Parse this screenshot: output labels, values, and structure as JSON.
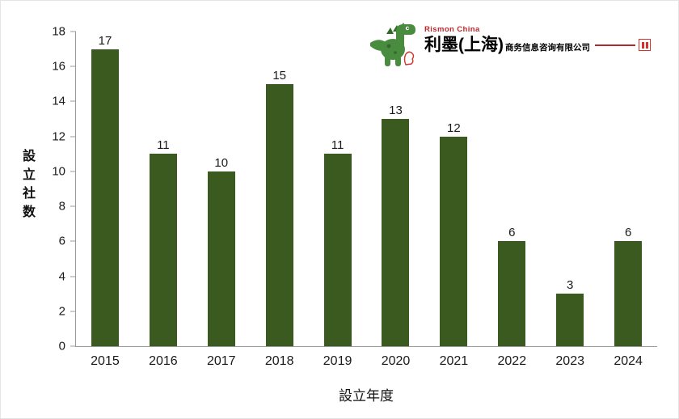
{
  "chart_data": {
    "type": "bar",
    "title": "",
    "categories": [
      "2015",
      "2016",
      "2017",
      "2018",
      "2019",
      "2020",
      "2021",
      "2022",
      "2023",
      "2024"
    ],
    "values": [
      17,
      11,
      10,
      15,
      11,
      13,
      12,
      6,
      3,
      6
    ],
    "xlabel": "設立年度",
    "ylabel": "設立社数",
    "ylim": [
      0,
      18
    ],
    "ytick_step": 2,
    "yticks": [
      0,
      2,
      4,
      6,
      8,
      10,
      12,
      14,
      16,
      18
    ],
    "bar_color": "#3b5a1f",
    "grid": false,
    "legend": "none",
    "value_labels": true
  },
  "logo": {
    "brand": "Rismon China",
    "company_main": "利墨(上海)",
    "company_sub": "商务信息咨询有限公司",
    "brand_color": "#c0272d",
    "seal_color": "#d0342c"
  }
}
